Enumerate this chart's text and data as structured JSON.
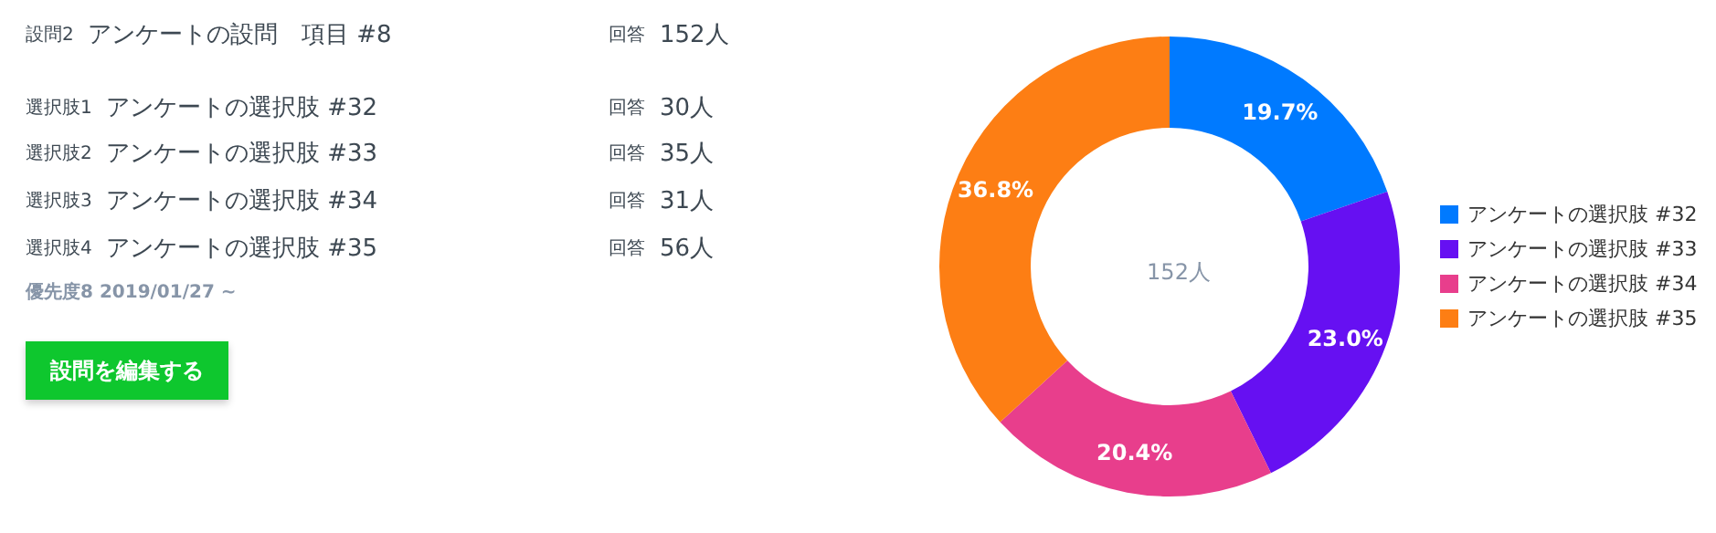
{
  "chart_data": [
    {
      "type": "other",
      "annotations": [
        "設問2",
        "アンケートの設問　項目 #8",
        "回答",
        "152人",
        "選択肢1",
        "アンケートの選択肢 #32",
        "回答",
        "30人",
        "選択肢2",
        "アンケートの選択肢 #33",
        "回答",
        "35人",
        "選択肢3",
        "アンケートの選択肢 #34",
        "回答",
        "31人",
        "選択肢4",
        "アンケートの選択肢 #35",
        "回答",
        "56人",
        "優先度8 2019/01/27 ~",
        "設問を編集する"
      ]
    },
    {
      "type": "donut",
      "categories": [
        "アンケートの選択肢 #32",
        "アンケートの選択肢 #33",
        "アンケートの選択肢 #34",
        "アンケートの選択肢 #35"
      ],
      "values": [
        19.7,
        23.0,
        20.4,
        36.8
      ],
      "colors": [
        "#007aff",
        "#6610f2",
        "#e83e8c",
        "#fd7e14"
      ],
      "value_labels": [
        "19.7%",
        "23.0%",
        "20.4%",
        "36.8%"
      ],
      "annotations": [
        "152人"
      ],
      "legend": "right"
    }
  ]
}
